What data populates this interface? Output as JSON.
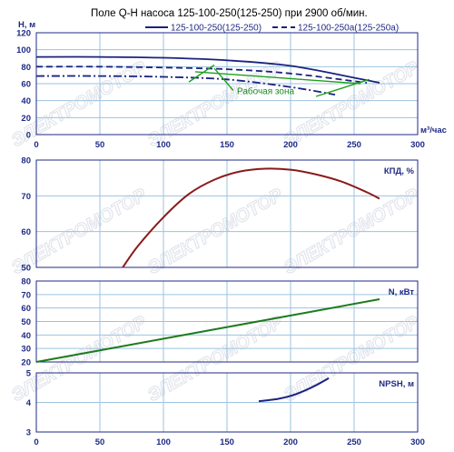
{
  "colors": {
    "axis": "#1f2a86",
    "grid": "#9bc3e0",
    "plot_bg": "#ffffff",
    "h_main": "#1a237e",
    "h_trim": "#1a237e",
    "efficiency": "#8b1a1a",
    "power": "#1e7a1e",
    "npsh": "#1a237e",
    "work_zone": "#1ea01e",
    "watermark": "#dfe3ea"
  },
  "watermark_text": "ЭЛЕКТРОМОТОР",
  "chart_data": {
    "title": "Поле Q-H насоса 125-100-250(125-250) при 2900 об/мин.",
    "x_label": "м³/час",
    "x_ticks": [
      0,
      50,
      100,
      150,
      200,
      250,
      300
    ],
    "xlim": [
      0,
      300
    ],
    "panels": [
      {
        "id": "qh",
        "type": "line",
        "ylabel": "H, м",
        "ylim": [
          0,
          120
        ],
        "y_ticks": [
          0,
          20,
          40,
          60,
          80,
          100,
          120
        ],
        "legend": [
          {
            "name": "125-100-250(125-250)",
            "style": "solid"
          },
          {
            "name": "125-100-250а(125-250а)",
            "style": "dashed"
          }
        ],
        "series": [
          {
            "name": "125-100-250(125-250)",
            "style": "solid",
            "x": [
              0,
              50,
              100,
              150,
              200,
              250,
              270
            ],
            "y": [
              91.5,
              91.5,
              90.5,
              87.5,
              81,
              67,
              61
            ]
          },
          {
            "name": "125-100-250а(125-250а)",
            "style": "dashed",
            "x": [
              0,
              50,
              100,
              150,
              200,
              260
            ],
            "y": [
              80,
              80,
              79,
              77,
              72,
              61
            ]
          },
          {
            "name": "",
            "style": "dashdot",
            "x": [
              0,
              50,
              100,
              150,
              200,
              235
            ],
            "y": [
              69,
              69,
              68,
              65,
              56,
              47
            ]
          }
        ],
        "annotation": {
          "text": "Рабочая зона",
          "x": 155,
          "y": 52
        },
        "work_zone": {
          "left_x": [
            140,
            120
          ],
          "left_y": [
            82,
            62
          ],
          "right_x": [
            262,
            220
          ],
          "right_y": [
            65,
            45
          ],
          "mid_x": [
            125,
            255
          ],
          "mid_y": [
            74,
            60
          ],
          "label_arrow_x": [
            155,
            140
          ],
          "label_arrow_y": [
            52,
            78
          ]
        }
      },
      {
        "id": "eff",
        "type": "line",
        "ylabel": "КПД, %",
        "ylim": [
          50,
          80
        ],
        "y_ticks": [
          50,
          60,
          70,
          80
        ],
        "series": [
          {
            "name": "КПД, %",
            "x": [
              68,
              80,
              100,
              120,
              140,
              160,
              180,
              200,
              220,
              240,
              260,
              270
            ],
            "y": [
              50,
              56,
              64,
              70.5,
              74.5,
              76.8,
              77.6,
              77.3,
              76,
              74,
              71,
              69.2
            ]
          }
        ]
      },
      {
        "id": "power",
        "type": "line",
        "ylabel": "N, кВт",
        "ylim": [
          20,
          80
        ],
        "y_ticks": [
          20,
          30,
          40,
          50,
          60,
          70,
          80
        ],
        "series": [
          {
            "name": "N, кВт",
            "x": [
              0,
              270
            ],
            "y": [
              20,
              66.5
            ]
          }
        ]
      },
      {
        "id": "npsh",
        "type": "line",
        "ylabel": "NPSH, м",
        "ylim": [
          3,
          5
        ],
        "y_ticks": [
          3,
          4,
          5
        ],
        "series": [
          {
            "name": "NPSH, м",
            "x": [
              175,
              190,
              200,
              210,
              220,
              230
            ],
            "y": [
              4.04,
              4.12,
              4.22,
              4.38,
              4.58,
              4.82
            ]
          }
        ]
      }
    ]
  }
}
